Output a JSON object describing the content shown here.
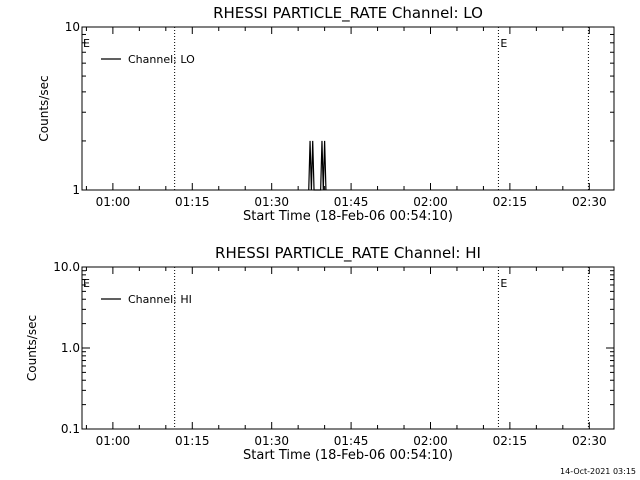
{
  "chart_data": [
    {
      "type": "line",
      "title": "RHESSI PARTICLE_RATE Channel: LO",
      "xlabel": "Start Time (18-Feb-06 00:54:10)",
      "ylabel": "Counts/sec",
      "yscale": "log",
      "ylim": [
        1,
        10
      ],
      "ytick_labels": [
        "1",
        "10"
      ],
      "x_tick_labels": [
        "01:00",
        "01:15",
        "01:30",
        "01:45",
        "02:00",
        "02:15",
        "02:30"
      ],
      "xlim": [
        "00:54:10",
        "02:34:40"
      ],
      "grid": false,
      "legend_position": "top-left",
      "series": [
        {
          "name": "Channel: LO",
          "color": "#000000",
          "x": [
            "01:37:00",
            "01:37:15",
            "01:37:30",
            "01:37:45",
            "01:38:00",
            "01:39:15",
            "01:39:30",
            "01:39:45",
            "01:40:00",
            "01:40:15"
          ],
          "y": [
            1,
            2,
            1,
            2,
            1,
            1,
            2,
            1,
            2,
            1
          ]
        }
      ],
      "vertical_markers": [
        {
          "x": "01:11:40",
          "label": "",
          "style": "dotted"
        },
        {
          "x": "02:12:50",
          "label": "E",
          "style": "dotted"
        },
        {
          "x": "02:29:50",
          "label": "",
          "style": "dotted"
        }
      ],
      "left_mark": "E"
    },
    {
      "type": "line",
      "title": "RHESSI PARTICLE_RATE Channel: HI",
      "xlabel": "Start Time (18-Feb-06 00:54:10)",
      "ylabel": "Counts/sec",
      "yscale": "log",
      "ylim": [
        0.1,
        10
      ],
      "ytick_labels": [
        "0.1",
        "1.0",
        "10.0"
      ],
      "x_tick_labels": [
        "01:00",
        "01:15",
        "01:30",
        "01:45",
        "02:00",
        "02:15",
        "02:30"
      ],
      "xlim": [
        "00:54:10",
        "02:34:40"
      ],
      "grid": false,
      "legend_position": "top-left",
      "series": [
        {
          "name": "Channel: HI",
          "color": "#000000",
          "x": [],
          "y": []
        }
      ],
      "vertical_markers": [
        {
          "x": "01:11:40",
          "label": "",
          "style": "dotted"
        },
        {
          "x": "02:12:50",
          "label": "E",
          "style": "dotted"
        },
        {
          "x": "02:29:50",
          "label": "",
          "style": "dotted"
        }
      ],
      "left_mark": "E"
    }
  ],
  "timestamp": "14-Oct-2021 03:15"
}
